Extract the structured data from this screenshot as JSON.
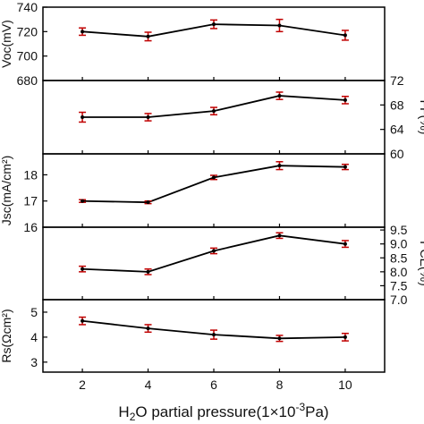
{
  "chart_data": [
    {
      "type": "line",
      "ylabel": "Voc(mV)",
      "ylim": [
        680,
        740
      ],
      "yticks": [
        680,
        700,
        720,
        740
      ],
      "yticks_side": "left",
      "series": [
        {
          "x": [
            2,
            4,
            6,
            8,
            10
          ],
          "values": [
            720,
            716,
            726,
            725,
            717
          ],
          "errors": [
            3,
            3.5,
            3.5,
            5,
            4
          ]
        }
      ]
    },
    {
      "type": "line",
      "ylabel": "FF(%)",
      "ylim": [
        60,
        72
      ],
      "yticks": [
        60,
        64,
        68,
        72
      ],
      "yticks_side": "right",
      "series": [
        {
          "x": [
            2,
            4,
            6,
            8,
            10
          ],
          "values": [
            66.0,
            66.0,
            67.0,
            69.5,
            68.8
          ],
          "errors": [
            0.8,
            0.6,
            0.6,
            0.6,
            0.6
          ]
        }
      ]
    },
    {
      "type": "line",
      "ylabel": "Jsc(mA/cm²)",
      "ylim": [
        16,
        18.8
      ],
      "yticks": [
        16,
        17,
        18
      ],
      "yticks_side": "left",
      "series": [
        {
          "x": [
            2,
            4,
            6,
            8,
            10
          ],
          "values": [
            17.0,
            16.95,
            17.9,
            18.35,
            18.3
          ],
          "errors": [
            0.05,
            0.05,
            0.08,
            0.15,
            0.1
          ]
        }
      ]
    },
    {
      "type": "line",
      "ylabel": "PCE(%)",
      "ylim": [
        7.0,
        9.6
      ],
      "yticks": [
        7.0,
        7.5,
        8.0,
        8.5,
        9.0,
        9.5
      ],
      "yticks_side": "right",
      "series": [
        {
          "x": [
            2,
            4,
            6,
            8,
            10
          ],
          "values": [
            8.1,
            8.0,
            8.75,
            9.3,
            9.0
          ],
          "errors": [
            0.1,
            0.1,
            0.1,
            0.1,
            0.12
          ]
        }
      ]
    },
    {
      "type": "line",
      "ylabel": "Rs(Ωcm²)",
      "ylim": [
        2.6,
        5.5
      ],
      "yticks": [
        3,
        4,
        5
      ],
      "yticks_side": "left",
      "series": [
        {
          "x": [
            2,
            4,
            6,
            8,
            10
          ],
          "values": [
            4.65,
            4.35,
            4.1,
            3.95,
            4.0
          ],
          "errors": [
            0.15,
            0.15,
            0.18,
            0.12,
            0.15
          ]
        }
      ]
    }
  ],
  "xaxis": {
    "ticks": [
      2,
      4,
      6,
      8,
      10
    ],
    "xlim": [
      0.8,
      11.2
    ],
    "label_prefix": "H",
    "label_sub": "2",
    "label_mid": "O partial pressure(1×10",
    "label_sup": "-3",
    "label_suffix": "Pa)"
  },
  "colors": {
    "line": "#000000",
    "errorbar": "#c00000",
    "axis": "#000000"
  }
}
